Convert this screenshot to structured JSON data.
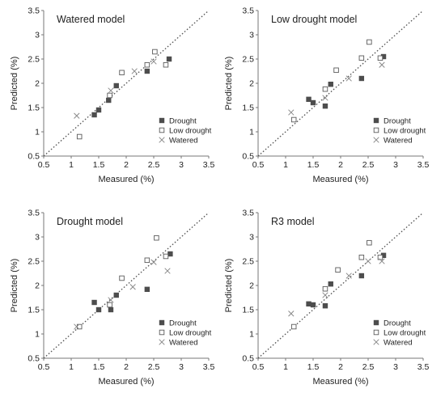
{
  "colors": {
    "axis": "#777777",
    "diagonal": "#555555",
    "drought": "#4d4d4d",
    "low_drought": "#5a5a5a",
    "watered": "#8a8a8a",
    "text": "#222222"
  },
  "legend": {
    "drought": "Drought",
    "low_drought": "Low drought",
    "watered": "Watered"
  },
  "chart_data": [
    {
      "type": "scatter",
      "title": "Watered model",
      "xlabel": "Measured  (%)",
      "ylabel": "Predicted  (%)",
      "xlim": [
        0.5,
        3.5
      ],
      "ylim": [
        0.5,
        3.5
      ],
      "xticks": [
        "0.5",
        "1",
        "1.5",
        "2",
        "2.5",
        "3",
        "3.5"
      ],
      "yticks": [
        "0.5",
        "1",
        "1.5",
        "2",
        "2.5",
        "3",
        "3.5"
      ],
      "reference_line": "y = x (dotted)",
      "legend_position": "lower-right",
      "series": [
        {
          "name": "Drought",
          "marker": "filled-square",
          "points": [
            [
              1.42,
              1.35
            ],
            [
              1.5,
              1.45
            ],
            [
              1.68,
              1.65
            ],
            [
              1.82,
              1.95
            ],
            [
              2.38,
              2.25
            ],
            [
              2.78,
              2.5
            ]
          ]
        },
        {
          "name": "Low drought",
          "marker": "open-square",
          "points": [
            [
              1.15,
              0.9
            ],
            [
              1.7,
              1.75
            ],
            [
              1.92,
              2.22
            ],
            [
              2.38,
              2.38
            ],
            [
              2.52,
              2.65
            ],
            [
              2.72,
              2.38
            ]
          ]
        },
        {
          "name": "Watered",
          "marker": "x",
          "points": [
            [
              1.1,
              1.33
            ],
            [
              1.72,
              1.85
            ],
            [
              2.15,
              2.25
            ],
            [
              2.5,
              2.45
            ]
          ]
        }
      ]
    },
    {
      "type": "scatter",
      "title": "Low drought model",
      "xlabel": "Measured  (%)",
      "ylabel": "Predicted  (%)",
      "xlim": [
        0.5,
        3.5
      ],
      "ylim": [
        0.5,
        3.5
      ],
      "xticks": [
        "0.5",
        "1",
        "1.5",
        "2",
        "2.5",
        "3",
        "3.5"
      ],
      "yticks": [
        "0.5",
        "1",
        "1.5",
        "2",
        "2.5",
        "3",
        "3.5"
      ],
      "reference_line": "y = x (dotted)",
      "legend_position": "lower-right",
      "series": [
        {
          "name": "Drought",
          "marker": "filled-square",
          "points": [
            [
              1.42,
              1.67
            ],
            [
              1.5,
              1.6
            ],
            [
              1.72,
              1.53
            ],
            [
              1.82,
              1.98
            ],
            [
              2.38,
              2.1
            ],
            [
              2.78,
              2.55
            ]
          ]
        },
        {
          "name": "Low drought",
          "marker": "open-square",
          "points": [
            [
              1.15,
              1.25
            ],
            [
              1.72,
              1.88
            ],
            [
              1.92,
              2.27
            ],
            [
              2.38,
              2.52
            ],
            [
              2.52,
              2.85
            ],
            [
              2.72,
              2.52
            ]
          ]
        },
        {
          "name": "Watered",
          "marker": "x",
          "points": [
            [
              1.1,
              1.4
            ],
            [
              1.72,
              1.7
            ],
            [
              2.15,
              2.1
            ],
            [
              2.75,
              2.38
            ]
          ]
        }
      ]
    },
    {
      "type": "scatter",
      "title": "Drought model",
      "xlabel": "Measured  (%)",
      "ylabel": "Predicted  (%)",
      "xlim": [
        0.5,
        3.5
      ],
      "ylim": [
        0.5,
        3.5
      ],
      "xticks": [
        "0.5",
        "1",
        "1.5",
        "2",
        "2.5",
        "3",
        "3.5"
      ],
      "yticks": [
        "0.5",
        "1",
        "1.5",
        "2",
        "2.5",
        "3",
        "3.5"
      ],
      "reference_line": "y = x (dotted)",
      "legend_position": "lower-right",
      "series": [
        {
          "name": "Drought",
          "marker": "filled-square",
          "points": [
            [
              1.42,
              1.65
            ],
            [
              1.5,
              1.5
            ],
            [
              1.72,
              1.5
            ],
            [
              1.82,
              1.8
            ],
            [
              2.38,
              1.92
            ],
            [
              2.8,
              2.65
            ]
          ]
        },
        {
          "name": "Low drought",
          "marker": "open-square",
          "points": [
            [
              1.15,
              1.15
            ],
            [
              1.7,
              1.6
            ],
            [
              1.92,
              2.15
            ],
            [
              2.38,
              2.52
            ],
            [
              2.55,
              2.98
            ],
            [
              2.72,
              2.6
            ]
          ]
        },
        {
          "name": "Watered",
          "marker": "x",
          "points": [
            [
              1.1,
              1.15
            ],
            [
              1.72,
              1.7
            ],
            [
              2.12,
              1.97
            ],
            [
              2.5,
              2.48
            ],
            [
              2.75,
              2.3
            ]
          ]
        }
      ]
    },
    {
      "type": "scatter",
      "title": "R3 model",
      "xlabel": "Measured  (%)",
      "ylabel": "Predicted  (%)",
      "xlim": [
        0.5,
        3.5
      ],
      "ylim": [
        0.5,
        3.5
      ],
      "xticks": [
        "0.5",
        "1",
        "1.5",
        "2",
        "2.5",
        "3",
        "3.5"
      ],
      "yticks": [
        "0.5",
        "1",
        "1.5",
        "2",
        "2.5",
        "3",
        "3.5"
      ],
      "reference_line": "y = x (dotted)",
      "legend_position": "lower-right",
      "series": [
        {
          "name": "Drought",
          "marker": "filled-square",
          "points": [
            [
              1.42,
              1.62
            ],
            [
              1.5,
              1.6
            ],
            [
              1.72,
              1.58
            ],
            [
              1.82,
              2.03
            ],
            [
              2.38,
              2.2
            ],
            [
              2.78,
              2.62
            ]
          ]
        },
        {
          "name": "Low drought",
          "marker": "open-square",
          "points": [
            [
              1.15,
              1.15
            ],
            [
              1.72,
              1.93
            ],
            [
              1.95,
              2.32
            ],
            [
              2.38,
              2.58
            ],
            [
              2.52,
              2.88
            ],
            [
              2.72,
              2.58
            ]
          ]
        },
        {
          "name": "Watered",
          "marker": "x",
          "points": [
            [
              1.1,
              1.42
            ],
            [
              1.72,
              1.8
            ],
            [
              2.15,
              2.2
            ],
            [
              2.5,
              2.5
            ],
            [
              2.75,
              2.5
            ]
          ]
        }
      ]
    }
  ]
}
